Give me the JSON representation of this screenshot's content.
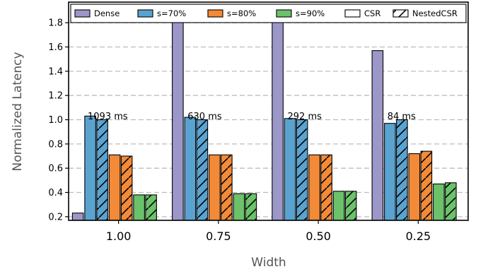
{
  "chart_data": {
    "type": "bar",
    "title": "",
    "xlabel": "Width",
    "ylabel": "Normalized Latency",
    "categories": [
      "1.00",
      "0.75",
      "0.50",
      "0.25"
    ],
    "ylim": [
      0.17,
      1.97
    ],
    "yticks": [
      0.2,
      0.4,
      0.6,
      0.8,
      1.0,
      1.2,
      1.4,
      1.6,
      1.8
    ],
    "ytick_labels": [
      "0.2",
      "0.4",
      "0.6",
      "0.8",
      "1.0",
      "1.2",
      "1.4",
      "1.6",
      "1.8"
    ],
    "grid": "horizontal dashed",
    "legend_position": "top",
    "legend": [
      {
        "label": "Dense",
        "color": "#9b97c8",
        "hatch": false
      },
      {
        "label": "s=70%",
        "color": "#5aa3d0",
        "hatch": false
      },
      {
        "label": "s=80%",
        "color": "#f28a37",
        "hatch": false
      },
      {
        "label": "s=90%",
        "color": "#6bc26b",
        "hatch": false
      },
      {
        "label": "CSR",
        "color": "#ffffff",
        "hatch": false
      },
      {
        "label": "NestedCSR",
        "color": "#ffffff",
        "hatch": true
      }
    ],
    "series": [
      {
        "name": "Dense",
        "color": "#9b97c8",
        "hatch": false,
        "values": [
          0.23,
          1.88,
          1.83,
          1.57
        ]
      },
      {
        "name": "s=70% CSR",
        "color": "#5aa3d0",
        "hatch": false,
        "values": [
          1.03,
          1.02,
          1.01,
          0.97
        ]
      },
      {
        "name": "s=70% NestedCSR",
        "color": "#5aa3d0",
        "hatch": true,
        "values": [
          1.0,
          1.0,
          1.0,
          1.0
        ]
      },
      {
        "name": "s=80% CSR",
        "color": "#f28a37",
        "hatch": false,
        "values": [
          0.71,
          0.71,
          0.71,
          0.72
        ]
      },
      {
        "name": "s=80% NestedCSR",
        "color": "#f28a37",
        "hatch": true,
        "values": [
          0.7,
          0.71,
          0.71,
          0.74
        ]
      },
      {
        "name": "s=90% CSR",
        "color": "#6bc26b",
        "hatch": false,
        "values": [
          0.38,
          0.39,
          0.41,
          0.47
        ]
      },
      {
        "name": "s=90% NestedCSR",
        "color": "#6bc26b",
        "hatch": true,
        "values": [
          0.38,
          0.39,
          0.41,
          0.48
        ]
      }
    ],
    "annotations": [
      "1093 ms",
      "630 ms",
      "292 ms",
      "84 ms"
    ]
  }
}
